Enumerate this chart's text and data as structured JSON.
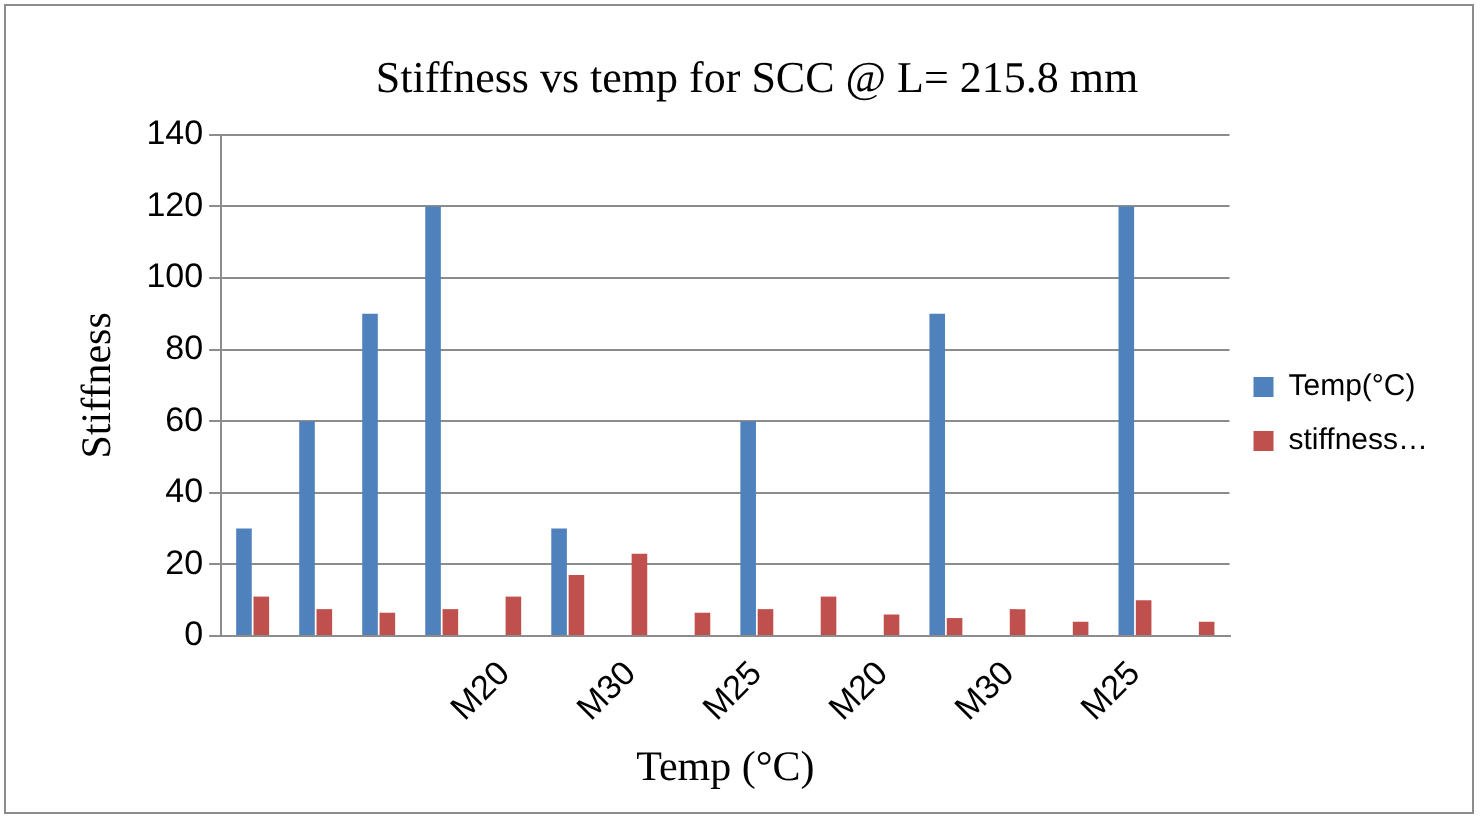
{
  "chart_data": {
    "type": "bar",
    "title": "Stiffness vs temp for SCC @ L= 215.8 mm",
    "xlabel": "Temp (°C)",
    "ylabel": "Stiffness",
    "categories": [
      null,
      null,
      null,
      null,
      "M20",
      null,
      "M30",
      null,
      "M25",
      null,
      "M20",
      null,
      "M30",
      null,
      "M25",
      null
    ],
    "series": [
      {
        "name": "Temp(°C)",
        "color": "#4f81bd",
        "values": [
          30,
          60,
          90,
          120,
          null,
          30,
          null,
          null,
          60,
          null,
          null,
          90,
          null,
          null,
          120,
          null
        ]
      },
      {
        "name": "stiffness…",
        "color": "#c0504d",
        "values": [
          11,
          7.5,
          6.5,
          7.5,
          11,
          17,
          23,
          6.5,
          7.5,
          11,
          6,
          5,
          7.5,
          4,
          10,
          4
        ]
      }
    ],
    "ylim": [
      0,
      140
    ],
    "yticks": [
      0,
      20,
      40,
      60,
      80,
      100,
      120,
      140
    ],
    "grid": "y",
    "legend": "right"
  }
}
